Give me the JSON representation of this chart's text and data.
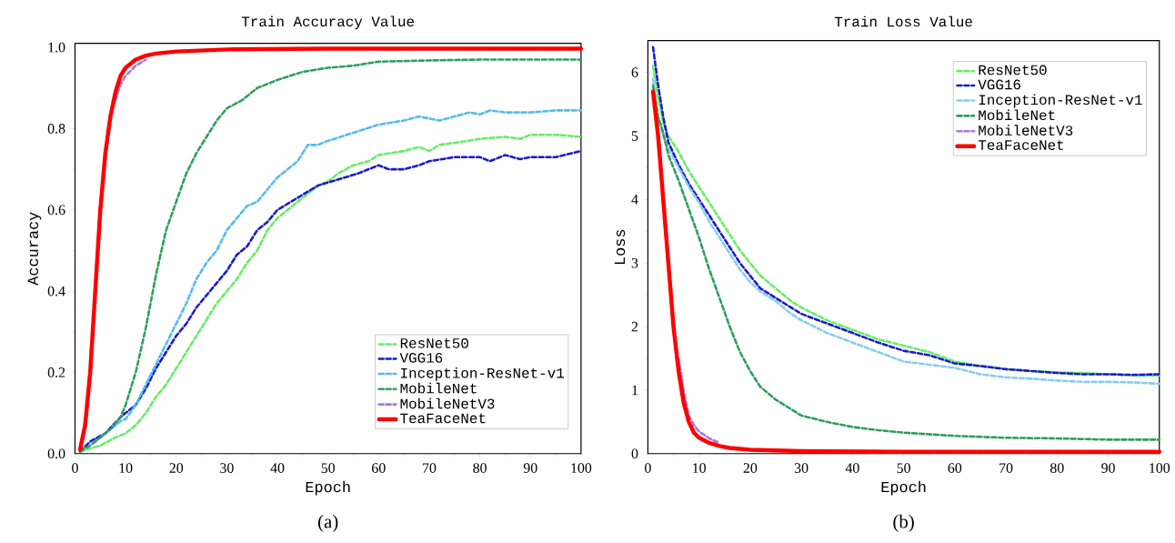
{
  "chart_data": [
    {
      "type": "line",
      "title": "Train Accuracy Value",
      "xlabel": "Epoch",
      "ylabel": "Accuracy",
      "annotations": [
        "(a)"
      ],
      "xlim": [
        0,
        100
      ],
      "ylim": [
        0,
        1.01
      ],
      "xticks": [
        0,
        10,
        20,
        30,
        40,
        50,
        60,
        70,
        80,
        90,
        100
      ],
      "yticks": [
        {
          "value": 0,
          "label": "0.0"
        },
        {
          "value": 0.2,
          "label": "0.2"
        },
        {
          "value": 0.4,
          "label": "0.4"
        },
        {
          "value": 0.6,
          "label": "0.6"
        },
        {
          "value": 0.8,
          "label": "0.8"
        },
        {
          "value": 1.0,
          "label": "1.0"
        }
      ],
      "legend": "bottom right",
      "grid": false,
      "marker": "none",
      "series": [
        {
          "name": "ResNet50",
          "color": "#66ee66",
          "line_style": "dashed",
          "x": [
            1,
            5,
            8,
            10,
            12,
            14,
            16,
            18,
            20,
            22,
            24,
            26,
            28,
            30,
            32,
            34,
            36,
            38,
            40,
            44,
            48,
            50,
            52,
            55,
            58,
            60,
            65,
            68,
            70,
            72,
            75,
            80,
            85,
            88,
            90,
            95,
            100
          ],
          "values": [
            0.005,
            0.02,
            0.04,
            0.05,
            0.07,
            0.1,
            0.14,
            0.17,
            0.21,
            0.25,
            0.29,
            0.33,
            0.37,
            0.4,
            0.43,
            0.47,
            0.5,
            0.55,
            0.58,
            0.62,
            0.66,
            0.67,
            0.69,
            0.71,
            0.72,
            0.735,
            0.745,
            0.755,
            0.745,
            0.76,
            0.765,
            0.775,
            0.78,
            0.775,
            0.785,
            0.785,
            0.78
          ]
        },
        {
          "name": "VGG16",
          "color": "#1a1acc",
          "line_style": "dashed",
          "x": [
            1,
            3,
            6,
            9,
            10,
            12,
            14,
            16,
            18,
            20,
            22,
            24,
            26,
            28,
            30,
            32,
            34,
            36,
            38,
            40,
            44,
            48,
            52,
            56,
            60,
            62,
            65,
            68,
            70,
            75,
            80,
            82,
            85,
            88,
            90,
            95,
            100
          ],
          "values": [
            0.005,
            0.03,
            0.05,
            0.09,
            0.1,
            0.12,
            0.16,
            0.21,
            0.25,
            0.29,
            0.32,
            0.36,
            0.39,
            0.42,
            0.45,
            0.49,
            0.51,
            0.55,
            0.57,
            0.6,
            0.63,
            0.66,
            0.675,
            0.69,
            0.71,
            0.7,
            0.7,
            0.71,
            0.72,
            0.73,
            0.73,
            0.72,
            0.735,
            0.725,
            0.73,
            0.73,
            0.745
          ]
        },
        {
          "name": "Inception-ResNet-v1",
          "color": "#55bbee",
          "line_style": "dashed",
          "x": [
            4,
            7,
            9,
            10,
            12,
            14,
            16,
            18,
            20,
            22,
            24,
            26,
            28,
            30,
            32,
            34,
            36,
            38,
            40,
            42,
            44,
            46,
            48,
            50,
            55,
            60,
            65,
            68,
            70,
            72,
            75,
            78,
            80,
            82,
            85,
            90,
            95,
            100
          ],
          "values": [
            0.03,
            0.06,
            0.08,
            0.085,
            0.12,
            0.17,
            0.22,
            0.27,
            0.32,
            0.37,
            0.43,
            0.47,
            0.5,
            0.55,
            0.58,
            0.61,
            0.62,
            0.65,
            0.68,
            0.7,
            0.72,
            0.76,
            0.76,
            0.77,
            0.79,
            0.81,
            0.82,
            0.83,
            0.825,
            0.82,
            0.83,
            0.84,
            0.835,
            0.845,
            0.84,
            0.84,
            0.845,
            0.845
          ]
        },
        {
          "name": "MobileNet",
          "color": "#2e9e5e",
          "line_style": "dashed",
          "x": [
            1,
            3,
            5,
            7,
            9,
            10,
            12,
            14,
            16,
            18,
            20,
            22,
            24,
            26,
            28,
            30,
            33,
            36,
            40,
            45,
            50,
            55,
            60,
            70,
            80,
            90,
            100
          ],
          "values": [
            0.005,
            0.02,
            0.04,
            0.06,
            0.09,
            0.12,
            0.2,
            0.31,
            0.44,
            0.55,
            0.62,
            0.69,
            0.74,
            0.78,
            0.82,
            0.85,
            0.87,
            0.9,
            0.92,
            0.94,
            0.95,
            0.955,
            0.965,
            0.968,
            0.97,
            0.97,
            0.97
          ]
        },
        {
          "name": "MobileNetV3",
          "color": "#aa77dd",
          "line_style": "dashed",
          "x": [
            8,
            9,
            10,
            12,
            14
          ],
          "values": [
            0.87,
            0.91,
            0.93,
            0.955,
            0.97
          ]
        },
        {
          "name": "TeaFaceNet",
          "color": "#ff0000",
          "line_style": "solid",
          "x": [
            1,
            2,
            3,
            4,
            5,
            6,
            7,
            8,
            9,
            10,
            12,
            14,
            16,
            20,
            30,
            50,
            100
          ],
          "values": [
            0.01,
            0.07,
            0.2,
            0.4,
            0.6,
            0.74,
            0.83,
            0.89,
            0.93,
            0.95,
            0.97,
            0.98,
            0.985,
            0.99,
            0.995,
            0.997,
            0.997
          ]
        }
      ]
    },
    {
      "type": "line",
      "title": "Train Loss Value",
      "xlabel": "Epoch",
      "ylabel": "Loss",
      "annotations": [
        "(b)"
      ],
      "xlim": [
        0,
        100
      ],
      "ylim": [
        0,
        6.5
      ],
      "xticks": [
        0,
        10,
        20,
        30,
        40,
        50,
        60,
        70,
        80,
        90,
        100
      ],
      "yticks": [
        0,
        1,
        2,
        3,
        4,
        5,
        6
      ],
      "legend": "top right",
      "grid": false,
      "marker": "none",
      "series": [
        {
          "name": "ResNet50",
          "color": "#66ee66",
          "line_style": "dashed",
          "x": [
            1,
            2,
            3,
            4,
            6,
            8,
            10,
            12,
            14,
            16,
            18,
            20,
            22,
            25,
            28,
            30,
            35,
            40,
            45,
            50,
            55,
            60,
            65,
            70,
            75,
            80,
            85,
            90,
            95,
            100
          ],
          "values": [
            6.1,
            5.6,
            5.2,
            5.0,
            4.75,
            4.45,
            4.2,
            3.95,
            3.7,
            3.45,
            3.2,
            3.0,
            2.8,
            2.6,
            2.4,
            2.3,
            2.1,
            1.95,
            1.8,
            1.7,
            1.6,
            1.45,
            1.38,
            1.33,
            1.3,
            1.28,
            1.27,
            1.25,
            1.23,
            1.23
          ]
        },
        {
          "name": "VGG16",
          "color": "#1a1acc",
          "line_style": "dashed",
          "x": [
            1,
            2,
            3,
            4,
            6,
            8,
            10,
            12,
            14,
            16,
            18,
            20,
            22,
            25,
            28,
            30,
            35,
            40,
            45,
            50,
            55,
            60,
            65,
            70,
            75,
            80,
            85,
            90,
            95,
            100
          ],
          "values": [
            6.4,
            5.8,
            5.3,
            4.9,
            4.55,
            4.25,
            4.0,
            3.75,
            3.5,
            3.25,
            3.0,
            2.8,
            2.6,
            2.45,
            2.3,
            2.2,
            2.05,
            1.9,
            1.75,
            1.62,
            1.55,
            1.42,
            1.38,
            1.33,
            1.3,
            1.27,
            1.25,
            1.25,
            1.24,
            1.25
          ]
        },
        {
          "name": "Inception-ResNet-v1",
          "color": "#88ccf0",
          "line_style": "dashed",
          "x": [
            1,
            2,
            3,
            4,
            6,
            8,
            10,
            12,
            14,
            16,
            18,
            20,
            22,
            25,
            28,
            30,
            35,
            40,
            45,
            50,
            55,
            60,
            65,
            70,
            75,
            80,
            85,
            90,
            95,
            100
          ],
          "values": [
            5.9,
            5.3,
            5.0,
            4.8,
            4.5,
            4.2,
            3.95,
            3.65,
            3.4,
            3.15,
            2.9,
            2.7,
            2.55,
            2.4,
            2.2,
            2.1,
            1.9,
            1.75,
            1.6,
            1.45,
            1.4,
            1.35,
            1.25,
            1.2,
            1.18,
            1.15,
            1.13,
            1.13,
            1.12,
            1.1
          ]
        },
        {
          "name": "MobileNet",
          "color": "#2e9e5e",
          "line_style": "dashed",
          "x": [
            1,
            2,
            3,
            4,
            6,
            8,
            10,
            12,
            14,
            16,
            18,
            20,
            22,
            25,
            28,
            30,
            35,
            40,
            45,
            50,
            60,
            70,
            80,
            90,
            100
          ],
          "values": [
            5.8,
            5.3,
            5.05,
            4.7,
            4.3,
            3.85,
            3.4,
            2.9,
            2.45,
            2.0,
            1.6,
            1.3,
            1.05,
            0.85,
            0.7,
            0.6,
            0.5,
            0.42,
            0.37,
            0.33,
            0.28,
            0.25,
            0.24,
            0.22,
            0.22
          ]
        },
        {
          "name": "MobileNetV3",
          "color": "#aa77dd",
          "line_style": "dashed",
          "x": [
            6,
            7,
            8,
            9,
            10,
            12,
            14
          ],
          "values": [
            1.5,
            1.0,
            0.6,
            0.45,
            0.35,
            0.24,
            0.17
          ]
        },
        {
          "name": "TeaFaceNet",
          "color": "#ff0000",
          "line_style": "solid",
          "x": [
            1,
            2,
            3,
            4,
            5,
            6,
            7,
            8,
            9,
            10,
            12,
            14,
            16,
            20,
            30,
            50,
            100
          ],
          "values": [
            5.7,
            5.0,
            4.0,
            3.0,
            2.0,
            1.3,
            0.8,
            0.5,
            0.33,
            0.25,
            0.17,
            0.12,
            0.09,
            0.06,
            0.04,
            0.03,
            0.03
          ]
        }
      ]
    }
  ]
}
